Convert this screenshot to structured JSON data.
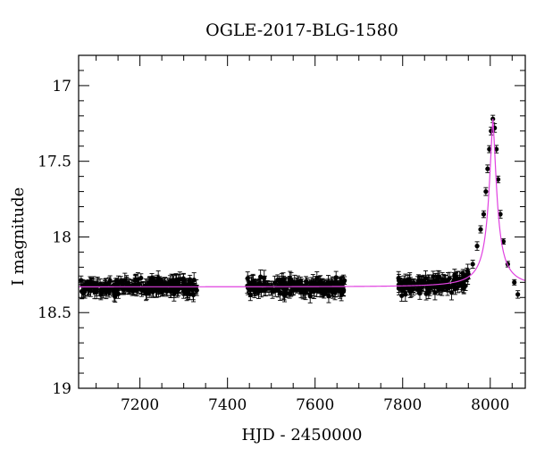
{
  "chart_data": {
    "type": "scatter",
    "title": "OGLE-2017-BLG-1580",
    "xlabel": "HJD - 2450000",
    "ylabel": "I magnitude",
    "xlim": [
      7060,
      8080
    ],
    "ylim": [
      19.0,
      16.8
    ],
    "y_inverted": true,
    "x_major_ticks": [
      7200,
      7400,
      7600,
      7800,
      8000
    ],
    "x_tick_labels": [
      "7200",
      "7400",
      "7600",
      "7800",
      "8000"
    ],
    "x_minor_step": 50,
    "y_major_ticks": [
      17,
      17.5,
      18,
      18.5,
      19
    ],
    "y_tick_labels": [
      "17",
      "17.5",
      "18",
      "18.5",
      "19"
    ],
    "y_minor_step": 0.1,
    "grid": false,
    "colors": {
      "points": "#000000",
      "model": "#e040e0"
    },
    "model": {
      "name": "",
      "baseline_mag": 18.33,
      "peak_time": 8006,
      "peak_mag": 17.22
    },
    "observing_seasons": [
      {
        "start": 7065,
        "end": 7330,
        "baseline": 18.33,
        "scatter": 0.05
      },
      {
        "start": 7445,
        "end": 7670,
        "baseline": 18.33,
        "scatter": 0.05
      },
      {
        "start": 7790,
        "end": 8075,
        "baseline": 18.33,
        "scatter": 0.05
      }
    ],
    "event_points": [
      {
        "x": 7960,
        "y": 18.18
      },
      {
        "x": 7970,
        "y": 18.06
      },
      {
        "x": 7978,
        "y": 17.95
      },
      {
        "x": 7985,
        "y": 17.85
      },
      {
        "x": 7990,
        "y": 17.7
      },
      {
        "x": 7994,
        "y": 17.55
      },
      {
        "x": 7998,
        "y": 17.42
      },
      {
        "x": 8002,
        "y": 17.3
      },
      {
        "x": 8006,
        "y": 17.22
      },
      {
        "x": 8010,
        "y": 17.28
      },
      {
        "x": 8014,
        "y": 17.42
      },
      {
        "x": 8018,
        "y": 17.62
      },
      {
        "x": 8023,
        "y": 17.85
      },
      {
        "x": 8030,
        "y": 18.03
      },
      {
        "x": 8040,
        "y": 18.18
      },
      {
        "x": 8055,
        "y": 18.3
      },
      {
        "x": 8063,
        "y": 18.38
      }
    ]
  }
}
